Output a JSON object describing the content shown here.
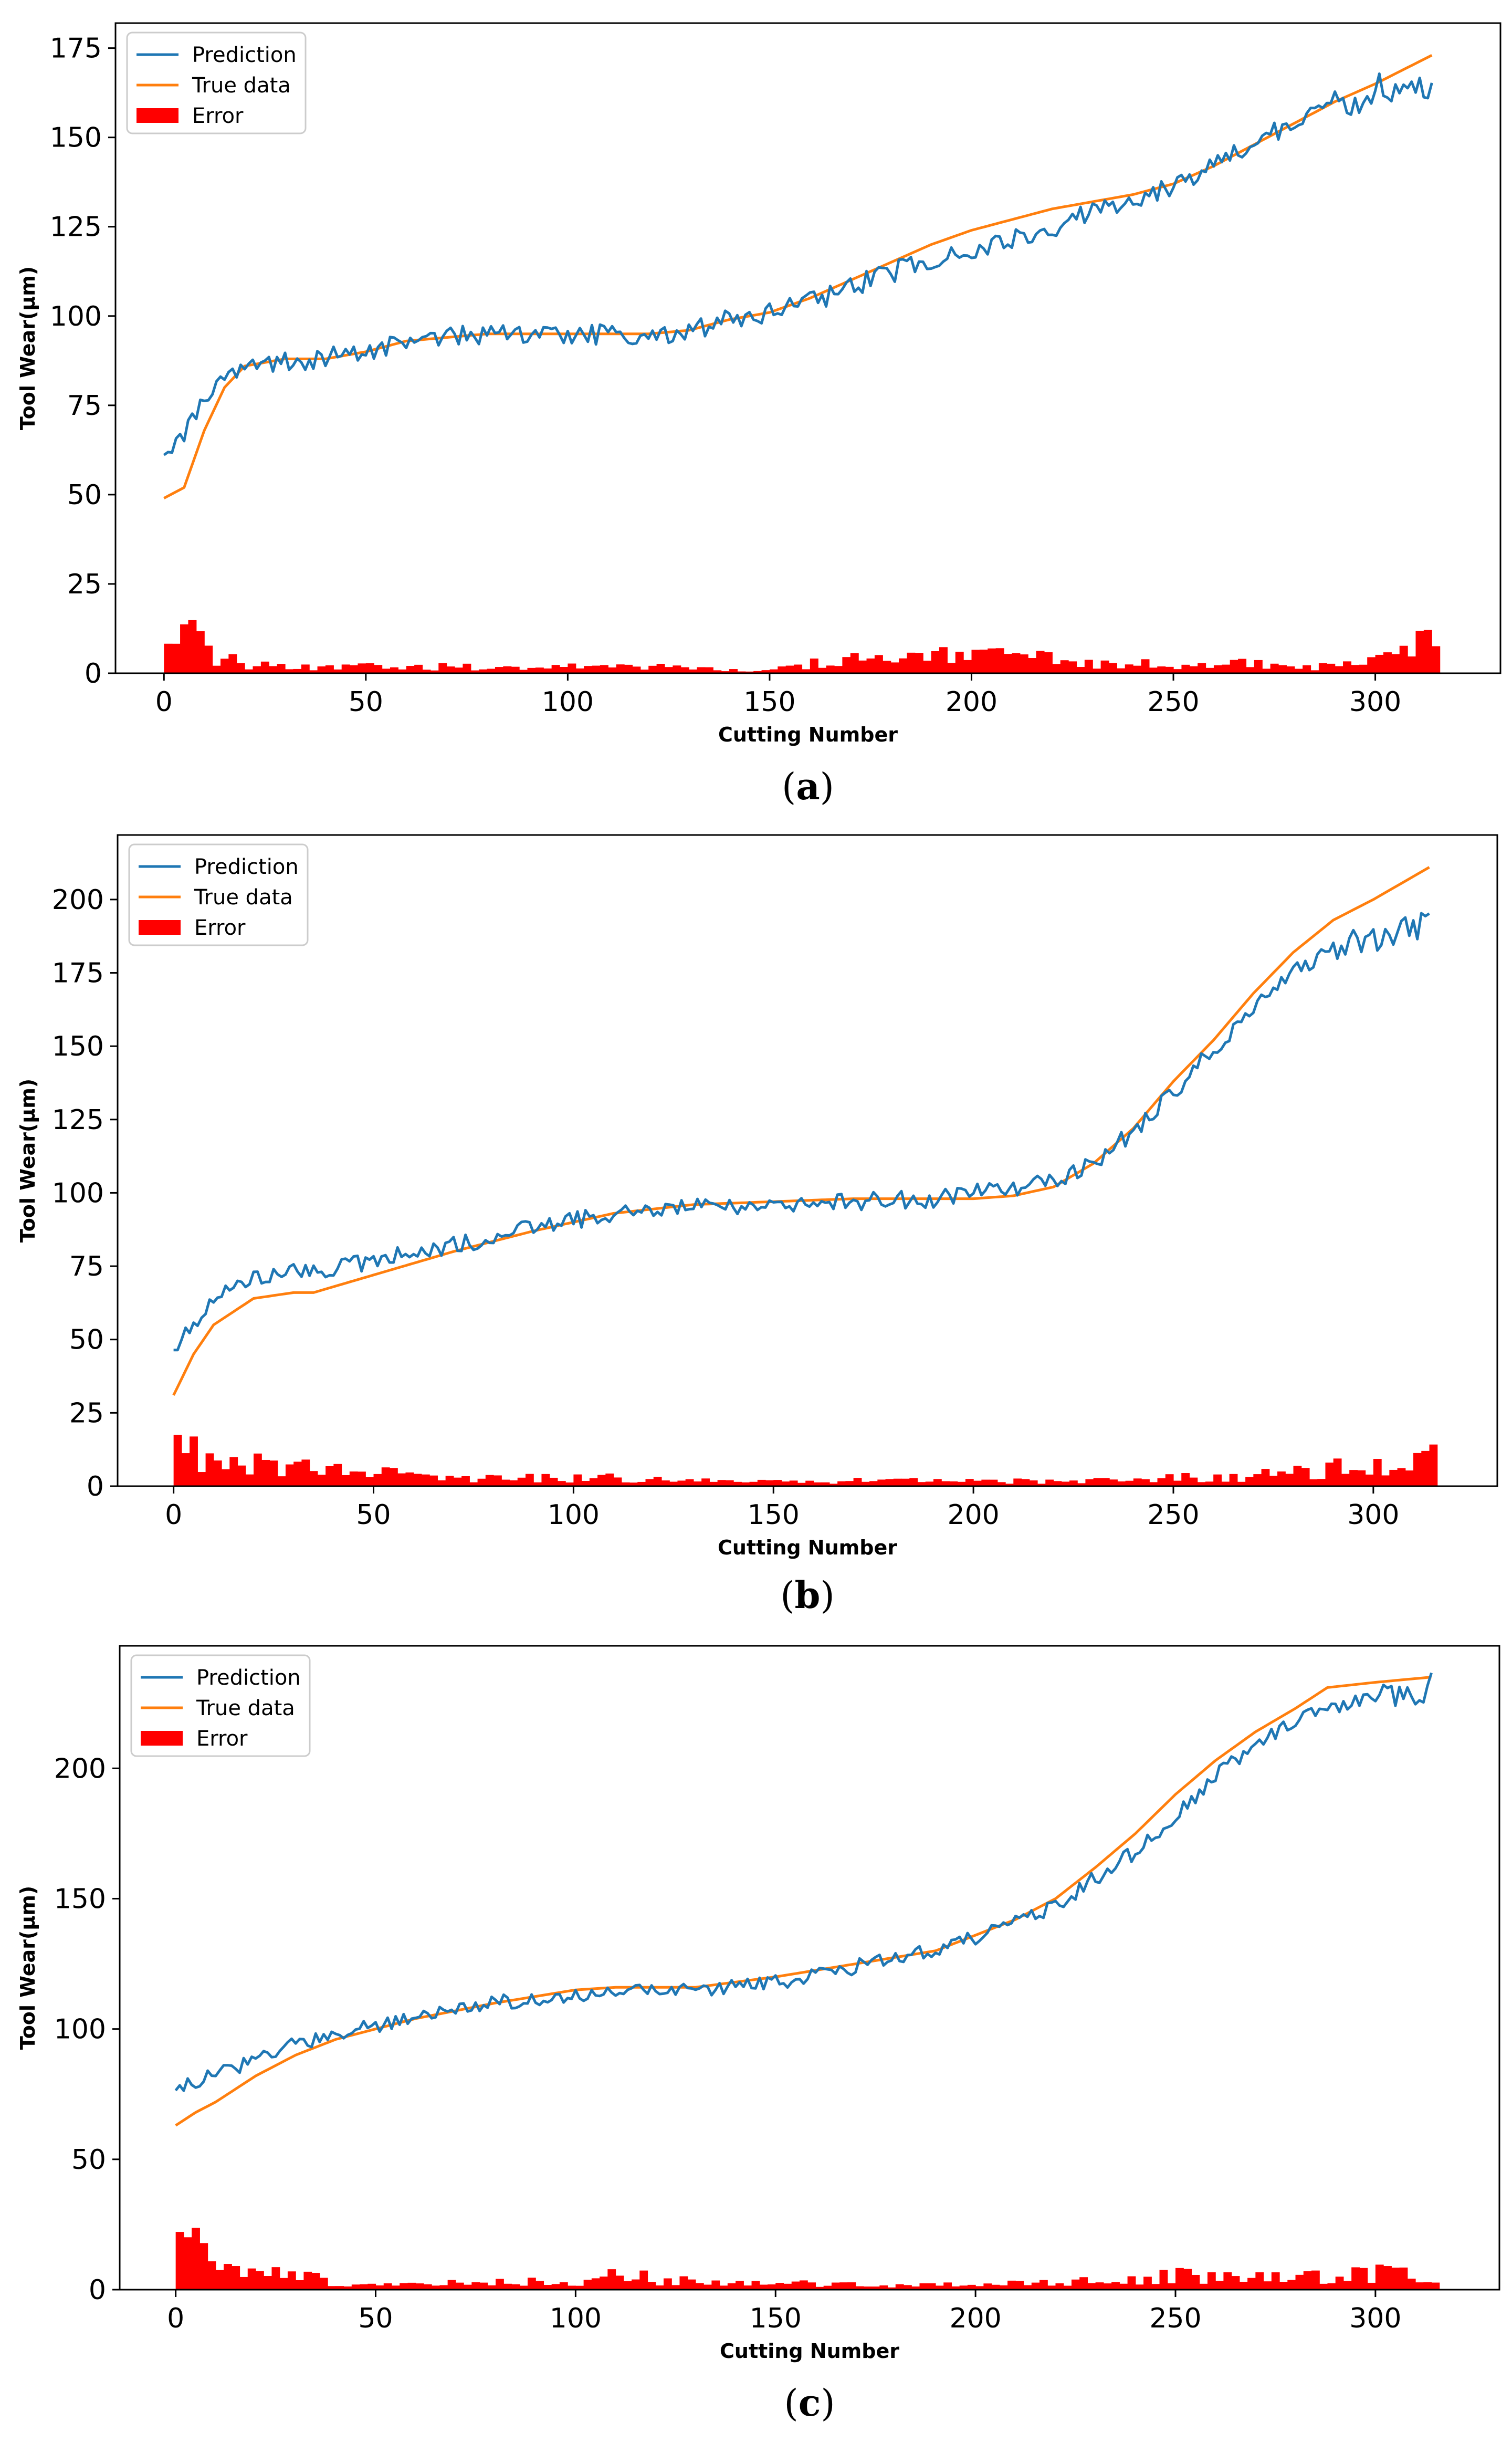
{
  "chart_data": [
    {
      "type": "line",
      "panel": "(a)",
      "caption_letter": "a",
      "title": "",
      "xlabel": "Cutting Number",
      "ylabel": "Tool Wear(μm)",
      "xlim": [
        -12,
        331
      ],
      "ylim": [
        0,
        182
      ],
      "xticks": [
        0,
        50,
        100,
        150,
        200,
        250,
        300
      ],
      "yticks": [
        0,
        25,
        50,
        75,
        100,
        125,
        150,
        175
      ],
      "legend": [
        "Prediction",
        "True data",
        "Error"
      ],
      "legend_position": "upper-left",
      "grid": false,
      "n_points": 315,
      "series": [
        {
          "name": "True data",
          "color": "#ff7f0e",
          "x": [
            0,
            5,
            10,
            15,
            20,
            30,
            40,
            50,
            60,
            80,
            100,
            120,
            130,
            140,
            150,
            160,
            170,
            180,
            190,
            200,
            210,
            220,
            230,
            240,
            250,
            260,
            270,
            280,
            290,
            300,
            314
          ],
          "values": [
            49,
            52,
            68,
            80,
            86,
            88,
            88,
            90,
            93,
            95,
            95,
            95,
            96,
            99,
            101,
            105,
            110,
            115,
            120,
            124,
            127,
            130,
            132,
            134,
            137,
            142,
            148,
            154,
            160,
            165,
            173
          ]
        },
        {
          "name": "Prediction",
          "color": "#1f77b4",
          "x": [
            0,
            5,
            10,
            15,
            20,
            30,
            40,
            50,
            60,
            80,
            100,
            120,
            130,
            140,
            150,
            160,
            170,
            180,
            190,
            200,
            210,
            220,
            230,
            240,
            250,
            260,
            270,
            280,
            290,
            300,
            310,
            314
          ],
          "values": [
            63,
            66,
            76,
            82,
            86,
            87,
            88,
            90,
            93,
            95,
            95,
            94,
            96,
            99,
            101,
            104,
            108,
            112,
            116,
            119,
            122,
            125,
            129,
            132,
            136,
            142,
            148,
            155,
            160,
            163,
            162,
            163
          ]
        },
        {
          "name": "Error",
          "color": "#ff0000",
          "x": [
            0,
            5,
            10,
            15,
            20,
            30,
            50,
            70,
            100,
            120,
            140,
            150,
            160,
            170,
            180,
            190,
            200,
            210,
            220,
            230,
            240,
            250,
            260,
            270,
            280,
            290,
            300,
            305,
            310,
            314
          ],
          "values": [
            15,
            12,
            7,
            4,
            3,
            2,
            2,
            2,
            2,
            2,
            1,
            1,
            3,
            4,
            4,
            5,
            6,
            6,
            4,
            3,
            3,
            2,
            2,
            4,
            2,
            2,
            6,
            9,
            10,
            9
          ]
        }
      ]
    },
    {
      "type": "line",
      "panel": "(b)",
      "caption_letter": "b",
      "title": "",
      "xlabel": "Cutting Number",
      "ylabel": "Tool Wear(μm)",
      "xlim": [
        -14,
        331
      ],
      "ylim": [
        0,
        222
      ],
      "xticks": [
        0,
        50,
        100,
        150,
        200,
        250,
        300
      ],
      "yticks": [
        0,
        25,
        50,
        75,
        100,
        125,
        150,
        175,
        200
      ],
      "legend": [
        "Prediction",
        "True data",
        "Error"
      ],
      "legend_position": "upper-left",
      "grid": false,
      "n_points": 315,
      "series": [
        {
          "name": "True data",
          "color": "#ff7f0e",
          "x": [
            0,
            5,
            10,
            20,
            30,
            35,
            50,
            70,
            90,
            110,
            130,
            150,
            170,
            190,
            200,
            210,
            220,
            230,
            240,
            250,
            260,
            270,
            280,
            290,
            300,
            314
          ],
          "values": [
            31,
            45,
            55,
            64,
            66,
            66,
            72,
            80,
            87,
            93,
            96,
            97,
            98,
            98,
            98,
            99,
            102,
            110,
            122,
            138,
            152,
            168,
            182,
            193,
            200,
            211
          ]
        },
        {
          "name": "Prediction",
          "color": "#1f77b4",
          "x": [
            0,
            5,
            10,
            20,
            30,
            35,
            50,
            70,
            90,
            110,
            130,
            150,
            170,
            190,
            200,
            210,
            220,
            230,
            240,
            250,
            260,
            270,
            280,
            290,
            300,
            310,
            314
          ],
          "values": [
            48,
            55,
            65,
            71,
            73,
            73,
            77,
            82,
            88,
            93,
            95,
            96,
            97,
            98,
            100,
            101,
            104,
            110,
            121,
            134,
            149,
            163,
            175,
            183,
            187,
            190,
            195
          ]
        },
        {
          "name": "Error",
          "color": "#ff0000",
          "x": [
            0,
            5,
            10,
            20,
            30,
            40,
            50,
            70,
            90,
            110,
            130,
            150,
            170,
            190,
            210,
            230,
            250,
            270,
            290,
            300,
            305,
            310,
            314
          ],
          "values": [
            18,
            12,
            10,
            8,
            7,
            6,
            5,
            3,
            3,
            3,
            2,
            2,
            2,
            2,
            2,
            2,
            3,
            4,
            7,
            9,
            10,
            15,
            14
          ]
        }
      ]
    },
    {
      "type": "line",
      "panel": "(c)",
      "caption_letter": "c",
      "title": "",
      "xlabel": "Cutting Number",
      "ylabel": "Tool Wear(μm)",
      "xlim": [
        -14,
        331
      ],
      "ylim": [
        0,
        247
      ],
      "xticks": [
        0,
        50,
        100,
        150,
        200,
        250,
        300
      ],
      "yticks": [
        0,
        50,
        100,
        150,
        200
      ],
      "legend": [
        "Prediction",
        "True data",
        "Error"
      ],
      "legend_position": "upper-left",
      "grid": false,
      "n_points": 315,
      "series": [
        {
          "name": "True data",
          "color": "#ff7f0e",
          "x": [
            0,
            5,
            10,
            20,
            30,
            40,
            60,
            80,
            100,
            110,
            130,
            150,
            170,
            190,
            200,
            210,
            220,
            230,
            240,
            250,
            260,
            270,
            280,
            288,
            300,
            314
          ],
          "values": [
            63,
            68,
            72,
            82,
            90,
            96,
            104,
            110,
            115,
            116,
            116,
            120,
            125,
            130,
            136,
            142,
            150,
            162,
            175,
            190,
            203,
            214,
            223,
            231,
            233,
            235
          ]
        },
        {
          "name": "Prediction",
          "color": "#1f77b4",
          "x": [
            0,
            5,
            10,
            20,
            30,
            40,
            60,
            80,
            100,
            110,
            130,
            150,
            170,
            190,
            200,
            210,
            220,
            230,
            240,
            250,
            260,
            270,
            280,
            290,
            300,
            310,
            314
          ],
          "values": [
            76,
            80,
            83,
            88,
            94,
            98,
            105,
            110,
            113,
            114,
            115,
            118,
            124,
            130,
            135,
            141,
            147,
            158,
            168,
            182,
            197,
            209,
            218,
            225,
            227,
            228,
            232
          ]
        },
        {
          "name": "Error",
          "color": "#ff0000",
          "x": [
            0,
            5,
            10,
            20,
            30,
            40,
            60,
            80,
            100,
            110,
            130,
            150,
            170,
            190,
            210,
            230,
            250,
            260,
            270,
            280,
            290,
            300,
            305,
            310,
            314
          ],
          "values": [
            16,
            17,
            11,
            8,
            6,
            3,
            3,
            3,
            4,
            6,
            3,
            3,
            2,
            2,
            3,
            4,
            6,
            5,
            5,
            5,
            7,
            7,
            8,
            6,
            5
          ]
        }
      ]
    }
  ]
}
